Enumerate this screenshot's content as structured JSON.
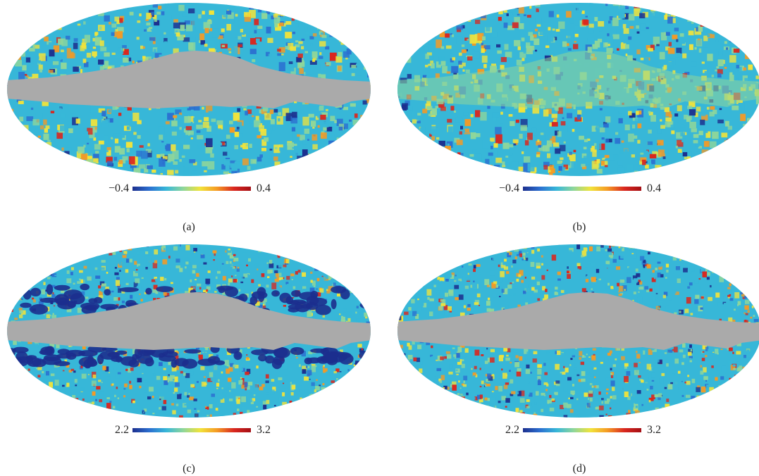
{
  "panels": [
    {
      "id": "a",
      "caption": "(a)",
      "scale_min": "−0.4",
      "scale_max": "0.4",
      "variant": "masked",
      "palette": "smooth"
    },
    {
      "id": "b",
      "caption": "(b)",
      "scale_min": "−0.4",
      "scale_max": "0.4",
      "variant": "filled",
      "palette": "smooth"
    },
    {
      "id": "c",
      "caption": "(c)",
      "scale_min": "2.2",
      "scale_max": "3.2",
      "variant": "masked-edges",
      "palette": "grainy"
    },
    {
      "id": "d",
      "caption": "(d)",
      "scale_min": "2.2",
      "scale_max": "3.2",
      "variant": "masked",
      "palette": "grainy"
    }
  ],
  "colors": {
    "mask_gray": "#aaaaaa",
    "colormap": [
      "#1c2f8e",
      "#2b6fd0",
      "#37b7d8",
      "#8fd69a",
      "#f1e33a",
      "#f59a24",
      "#d9271f",
      "#a50f15"
    ]
  }
}
